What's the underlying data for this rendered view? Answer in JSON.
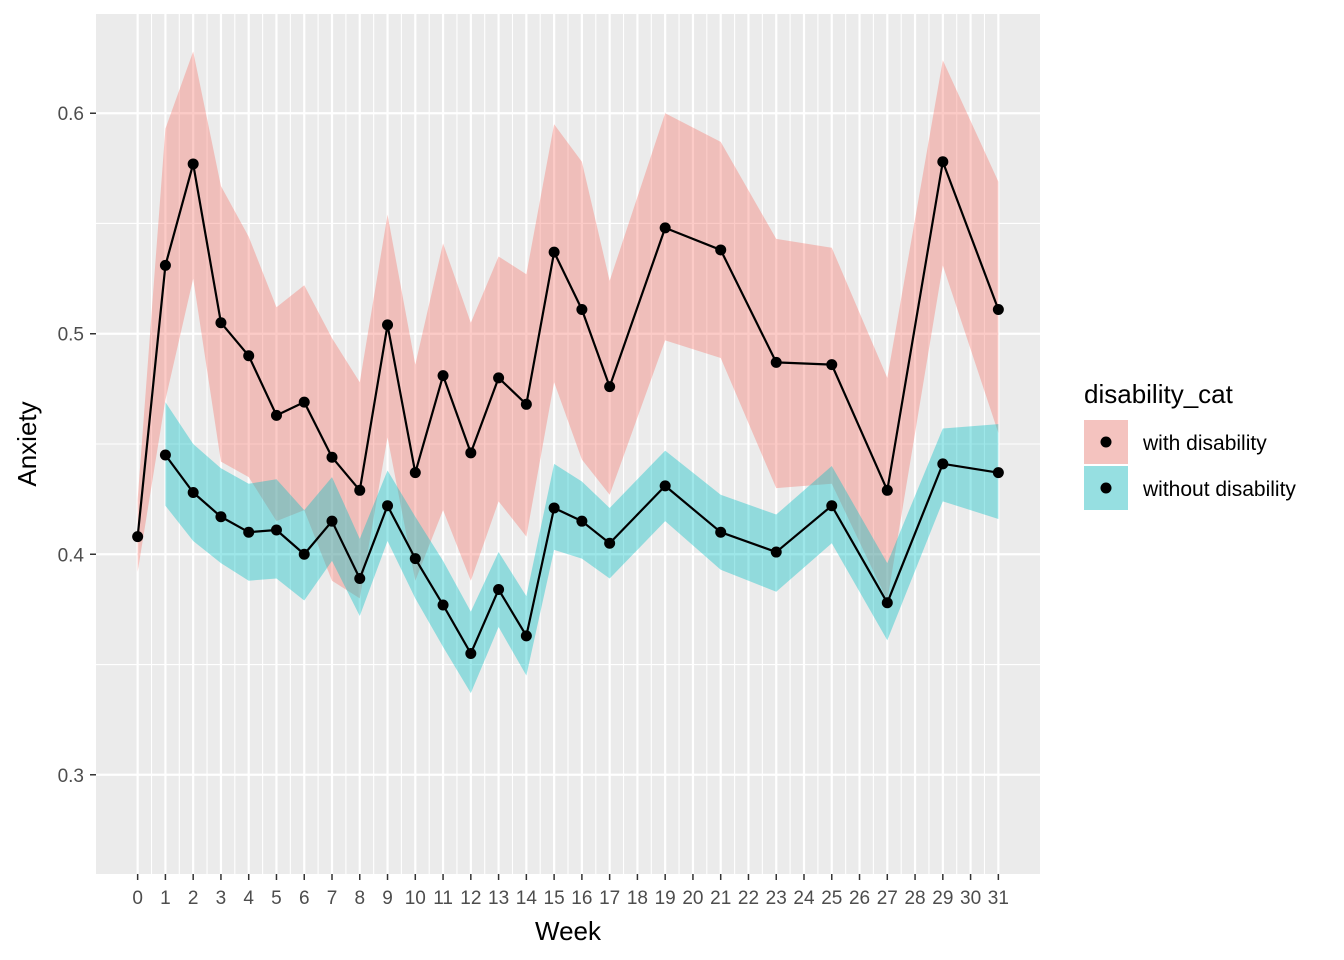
{
  "chart_data": {
    "type": "line",
    "xlabel": "Week",
    "ylabel": "Anxiety",
    "xlim": [
      -1.5,
      32.5
    ],
    "ylim": [
      0.255,
      0.645
    ],
    "x_ticks": [
      0,
      1,
      2,
      3,
      4,
      5,
      6,
      7,
      8,
      9,
      10,
      11,
      12,
      13,
      14,
      15,
      16,
      17,
      18,
      19,
      20,
      21,
      22,
      23,
      24,
      25,
      26,
      27,
      28,
      29,
      30,
      31
    ],
    "y_ticks": [
      0.3,
      0.4,
      0.5,
      0.6
    ],
    "y_tick_labels": [
      "0.3",
      "0.4",
      "0.5",
      "0.6"
    ],
    "grid": true,
    "legend": {
      "title": "disability_cat",
      "placement": "right"
    },
    "series": [
      {
        "name": "with disability",
        "color": "#F8766D",
        "x": [
          0,
          1,
          2,
          3,
          4,
          5,
          6,
          7,
          8,
          9,
          10,
          11,
          12,
          13,
          14,
          15,
          16,
          17,
          19,
          21,
          23,
          25,
          27,
          29,
          31
        ],
        "y": [
          0.408,
          0.531,
          0.577,
          0.505,
          0.49,
          0.463,
          0.469,
          0.444,
          0.429,
          0.504,
          0.437,
          0.481,
          0.446,
          0.48,
          0.468,
          0.537,
          0.511,
          0.476,
          0.548,
          0.538,
          0.487,
          0.486,
          0.429,
          0.578,
          0.511
        ],
        "lower": [
          0.392,
          0.47,
          0.525,
          0.442,
          0.435,
          0.415,
          0.42,
          0.388,
          0.38,
          0.453,
          0.388,
          0.42,
          0.388,
          0.424,
          0.408,
          0.478,
          0.443,
          0.427,
          0.497,
          0.489,
          0.43,
          0.432,
          0.379,
          0.531,
          0.455
        ],
        "upper": [
          0.425,
          0.593,
          0.628,
          0.567,
          0.544,
          0.512,
          0.522,
          0.498,
          0.478,
          0.554,
          0.486,
          0.541,
          0.505,
          0.535,
          0.527,
          0.595,
          0.578,
          0.524,
          0.6,
          0.587,
          0.543,
          0.539,
          0.48,
          0.624,
          0.569
        ]
      },
      {
        "name": "without disability",
        "color": "#00BFC4",
        "x": [
          1,
          2,
          3,
          4,
          5,
          6,
          7,
          8,
          9,
          10,
          11,
          12,
          13,
          14,
          15,
          16,
          17,
          19,
          21,
          23,
          25,
          27,
          29,
          31
        ],
        "y": [
          0.445,
          0.428,
          0.417,
          0.41,
          0.411,
          0.4,
          0.415,
          0.389,
          0.422,
          0.398,
          0.377,
          0.355,
          0.384,
          0.363,
          0.421,
          0.415,
          0.405,
          0.431,
          0.41,
          0.401,
          0.422,
          0.378,
          0.441,
          0.437
        ],
        "lower": [
          0.422,
          0.406,
          0.396,
          0.388,
          0.389,
          0.379,
          0.397,
          0.372,
          0.406,
          0.38,
          0.358,
          0.337,
          0.367,
          0.345,
          0.402,
          0.398,
          0.389,
          0.415,
          0.393,
          0.383,
          0.405,
          0.361,
          0.424,
          0.416
        ],
        "upper": [
          0.469,
          0.45,
          0.439,
          0.432,
          0.434,
          0.42,
          0.435,
          0.407,
          0.438,
          0.417,
          0.397,
          0.374,
          0.401,
          0.381,
          0.441,
          0.433,
          0.421,
          0.447,
          0.427,
          0.418,
          0.44,
          0.396,
          0.457,
          0.459
        ]
      }
    ]
  }
}
